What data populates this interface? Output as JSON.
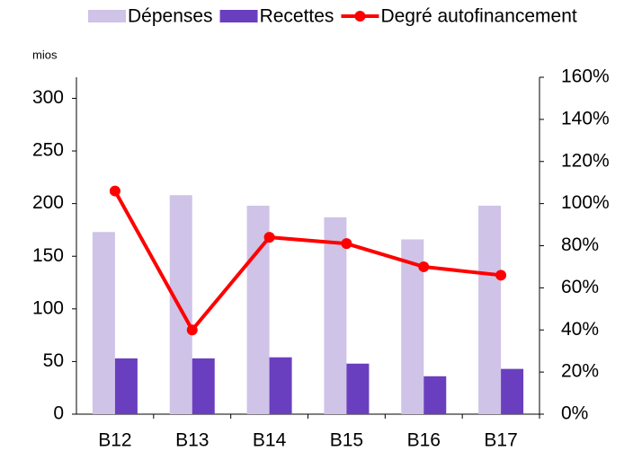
{
  "chart_data": {
    "type": "bar_line",
    "y_label": "mios",
    "categories": [
      "B12",
      "B13",
      "B14",
      "B15",
      "B16",
      "B17"
    ],
    "series": [
      {
        "name": "Dépenses",
        "type": "bar",
        "color": "#cfc3e8",
        "values": [
          173,
          208,
          198,
          187,
          166,
          198
        ]
      },
      {
        "name": "Recettes",
        "type": "bar",
        "color": "#6a3fbf",
        "values": [
          53,
          53,
          54,
          48,
          36,
          43
        ]
      },
      {
        "name": "Degré autofinancement",
        "type": "line",
        "axis": "y2",
        "color": "#ff0000",
        "values": [
          106,
          40,
          84,
          81,
          70,
          66
        ]
      }
    ],
    "ylim": [
      0,
      320
    ],
    "yticks": [
      0,
      50,
      100,
      150,
      200,
      250,
      300
    ],
    "y2lim": [
      0,
      160
    ],
    "y2ticks": [
      {
        "value": 0,
        "label": "0%"
      },
      {
        "value": 20,
        "label": "20%"
      },
      {
        "value": 40,
        "label": "40%"
      },
      {
        "value": 60,
        "label": "60%"
      },
      {
        "value": 80,
        "label": "80%"
      },
      {
        "value": 100,
        "label": "100%"
      },
      {
        "value": 120,
        "label": "120%"
      },
      {
        "value": 140,
        "label": "140%"
      },
      {
        "value": 160,
        "label": "160%"
      }
    ],
    "legend": "top"
  }
}
